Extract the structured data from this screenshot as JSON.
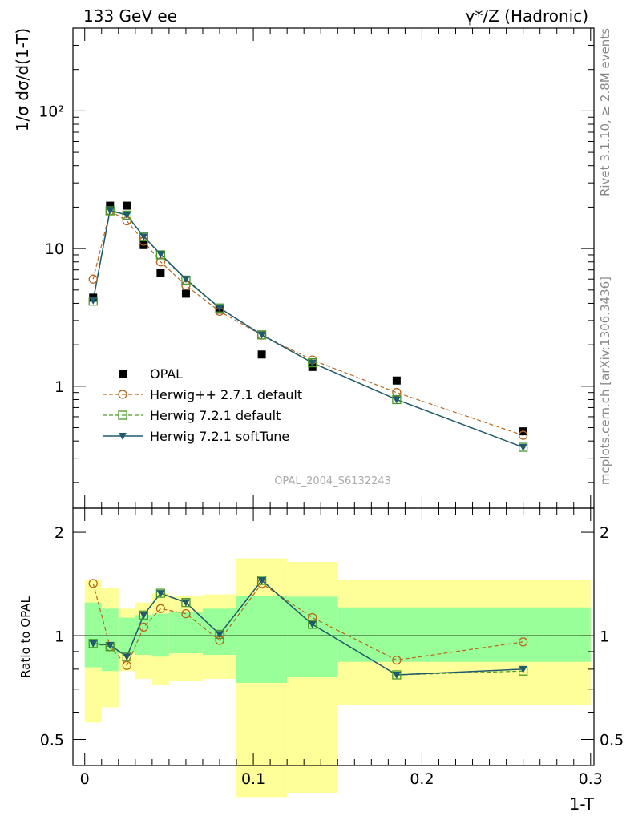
{
  "chart_data": [
    {
      "type": "scatter",
      "title_left": "133 GeV ee",
      "title_right": "γ*/Z (Hadronic)",
      "ylabel": "1/σ dσ/d(1-T)",
      "yscale": "log",
      "ylim": [
        0.13,
        400
      ],
      "xlim": [
        -0.007,
        0.302
      ],
      "yticks": [
        {
          "value": 1,
          "label": "1"
        },
        {
          "value": 10,
          "label": "10"
        },
        {
          "value": 100,
          "label": "10²"
        }
      ],
      "watermark": "OPAL_2004_S6132243",
      "side_text_top": "Rivet 3.1.10, ≥ 2.8M events",
      "side_text_bottom": "mcplots.cern.ch [arXiv:1306.3436]",
      "legend_position": "lower-left",
      "x": [
        0.005,
        0.015,
        0.025,
        0.035,
        0.045,
        0.06,
        0.08,
        0.105,
        0.135,
        0.185,
        0.26
      ],
      "series": [
        {
          "name": "OPAL",
          "marker": "filled-square",
          "color": "#000000",
          "values": [
            4.4,
            20.5,
            20.5,
            10.6,
            6.7,
            4.7,
            3.6,
            1.7,
            1.38,
            1.1,
            0.47
          ]
        },
        {
          "name": "Herwig++ 2.7.1 default",
          "marker": "open-circle",
          "line": "dashed",
          "color": "#b8651c",
          "values": [
            6.0,
            18.8,
            15.9,
            11.3,
            8.0,
            5.4,
            3.5,
            2.35,
            1.55,
            0.9,
            0.44
          ]
        },
        {
          "name": "Herwig 7.2.1 default",
          "marker": "open-square",
          "line": "dashed",
          "color": "#4a9a2a",
          "values": [
            4.15,
            18.8,
            17.5,
            12.2,
            9.0,
            5.9,
            3.7,
            2.36,
            1.48,
            0.8,
            0.36
          ]
        },
        {
          "name": "Herwig 7.2.1 softTune",
          "marker": "filled-triangle-down",
          "line": "solid",
          "color": "#1f5a6e",
          "values": [
            4.2,
            19.0,
            17.5,
            12.2,
            9.1,
            6.0,
            3.7,
            2.36,
            1.48,
            0.8,
            0.36
          ]
        }
      ]
    },
    {
      "type": "scatter",
      "ylabel": "Ratio to OPAL",
      "xlabel": "1-T",
      "yscale": "log",
      "ylim": [
        0.42,
        2.35
      ],
      "xlim": [
        -0.007,
        0.302
      ],
      "xticks": [
        {
          "value": 0,
          "label": "0"
        },
        {
          "value": 0.1,
          "label": "0.1"
        },
        {
          "value": 0.2,
          "label": "0.2"
        },
        {
          "value": 0.3,
          "label": "0.3"
        }
      ],
      "yticks": [
        {
          "value": 0.5,
          "label": "0.5"
        },
        {
          "value": 1,
          "label": "1"
        },
        {
          "value": 2,
          "label": "2"
        }
      ],
      "reference_line": 1,
      "bands": [
        {
          "x0": 0.0,
          "x1": 0.01,
          "inner": [
            0.81,
            1.25
          ],
          "outer": [
            0.56,
            1.45
          ]
        },
        {
          "x0": 0.01,
          "x1": 0.02,
          "inner": [
            0.79,
            1.2
          ],
          "outer": [
            0.62,
            1.38
          ]
        },
        {
          "x0": 0.02,
          "x1": 0.03,
          "inner": [
            0.89,
            1.13
          ],
          "outer": [
            0.79,
            1.2
          ]
        },
        {
          "x0": 0.03,
          "x1": 0.04,
          "inner": [
            0.88,
            1.15
          ],
          "outer": [
            0.75,
            1.25
          ]
        },
        {
          "x0": 0.04,
          "x1": 0.05,
          "inner": [
            0.87,
            1.16
          ],
          "outer": [
            0.72,
            1.33
          ]
        },
        {
          "x0": 0.05,
          "x1": 0.07,
          "inner": [
            0.89,
            1.17
          ],
          "outer": [
            0.74,
            1.31
          ]
        },
        {
          "x0": 0.07,
          "x1": 0.09,
          "inner": [
            0.88,
            1.2
          ],
          "outer": [
            0.75,
            1.32
          ]
        },
        {
          "x0": 0.09,
          "x1": 0.12,
          "inner": [
            0.73,
            1.31
          ],
          "outer": [
            0.34,
            1.68
          ]
        },
        {
          "x0": 0.12,
          "x1": 0.15,
          "inner": [
            0.76,
            1.3
          ],
          "outer": [
            0.35,
            1.64
          ]
        },
        {
          "x0": 0.15,
          "x1": 0.3,
          "inner": [
            0.84,
            1.21
          ],
          "outer": [
            0.63,
            1.45
          ]
        }
      ],
      "x": [
        0.005,
        0.015,
        0.025,
        0.035,
        0.045,
        0.06,
        0.08,
        0.105,
        0.135,
        0.185,
        0.26
      ],
      "series": [
        {
          "name": "Herwig++ 2.7.1 default",
          "marker": "open-circle",
          "line": "dashed",
          "color": "#b8651c",
          "values": [
            1.42,
            0.93,
            0.82,
            1.06,
            1.2,
            1.16,
            0.97,
            1.42,
            1.13,
            0.85,
            0.96
          ]
        },
        {
          "name": "Herwig 7.2.1 default",
          "marker": "open-square",
          "line": "dashed",
          "color": "#4a9a2a",
          "values": [
            0.95,
            0.93,
            0.87,
            1.15,
            1.33,
            1.25,
            1.01,
            1.45,
            1.08,
            0.77,
            0.79
          ]
        },
        {
          "name": "Herwig 7.2.1 softTune",
          "marker": "filled-triangle-down",
          "line": "solid",
          "color": "#1f5a6e",
          "values": [
            0.95,
            0.94,
            0.87,
            1.15,
            1.33,
            1.25,
            1.01,
            1.45,
            1.08,
            0.77,
            0.8
          ]
        }
      ]
    }
  ]
}
